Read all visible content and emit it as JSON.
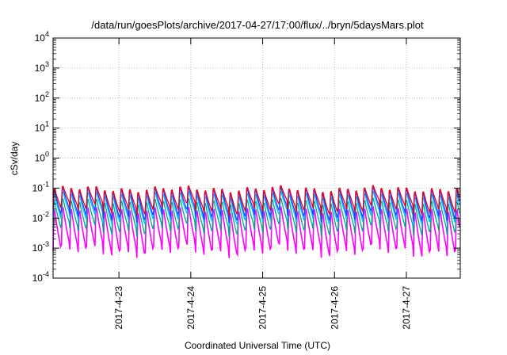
{
  "chart_data": {
    "type": "line",
    "title": "/data/run/goesPlots/archive/2017-04-27/17:00/flux/../bryn/5daysMars.plot",
    "xlabel": "Coordinated Universal Time (UTC)",
    "ylabel": "cSv/day",
    "y_scale": "log",
    "ylim_exponents": [
      -4,
      4
    ],
    "y_ticks": [
      {
        "base": "10",
        "exp": "-4"
      },
      {
        "base": "10",
        "exp": "-3"
      },
      {
        "base": "10",
        "exp": "-2"
      },
      {
        "base": "10",
        "exp": "-1"
      },
      {
        "base": "10",
        "exp": "0"
      },
      {
        "base": "10",
        "exp": "1"
      },
      {
        "base": "10",
        "exp": "2"
      },
      {
        "base": "10",
        "exp": "3"
      },
      {
        "base": "10",
        "exp": "4"
      }
    ],
    "x_range": [
      "2017-04-22 02:00",
      "2017-04-27 18:00"
    ],
    "x_ticks": [
      "2017-4-23",
      "2017-4-24",
      "2017-4-25",
      "2017-4-26",
      "2017-4-27"
    ],
    "x_tick_times": [
      "2017-04-23 00:00",
      "2017-04-24 00:00",
      "2017-04-25 00:00",
      "2017-04-26 00:00",
      "2017-04-27 00:00"
    ],
    "grid": true,
    "sawtooth_period_hours": 2.8,
    "series": [
      {
        "color": "#e8001f",
        "peak": 0.12,
        "trough": 0.02
      },
      {
        "color": "#1f3fff",
        "peak": 0.11,
        "trough": 0.012
      },
      {
        "color": "#00c0ff",
        "peak": 0.08,
        "trough": 0.009
      },
      {
        "color": "#00a88a",
        "peak": 0.05,
        "trough": 0.004
      },
      {
        "color": "#ff00ff",
        "peak": 0.03,
        "trough": 0.0008
      }
    ]
  }
}
